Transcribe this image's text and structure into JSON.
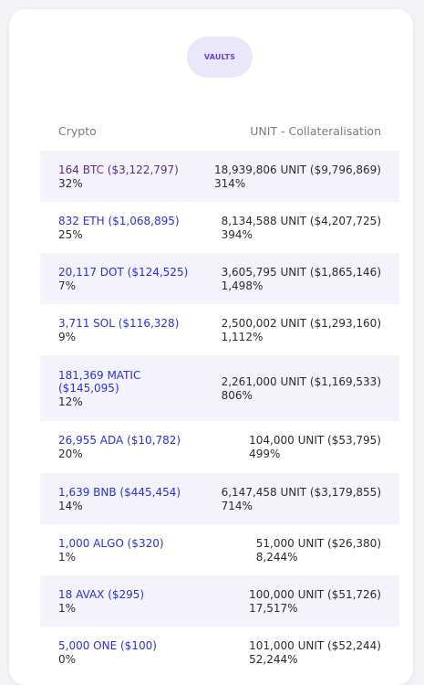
{
  "vault_pill": "VAULTS",
  "table": {
    "headers": [
      "Crypto",
      "UNIT - Collateralisation"
    ],
    "rows": [
      {
        "crypto": "164 BTC ($3,122,797)",
        "crypto_pct": "32%",
        "unit": "18,939,806 UNIT ($9,796,869)",
        "unit_pct": "314%"
      },
      {
        "crypto": "832 ETH ($1,068,895)",
        "crypto_pct": "25%",
        "unit": "8,134,588 UNIT ($4,207,725)",
        "unit_pct": "394%"
      },
      {
        "crypto": "20,117 DOT ($124,525)",
        "crypto_pct": "7%",
        "unit": "3,605,795 UNIT ($1,865,146)",
        "unit_pct": "1,498%"
      },
      {
        "crypto": "3,711 SOL ($116,328)",
        "crypto_pct": "9%",
        "unit": "2,500,002 UNIT ($1,293,160)",
        "unit_pct": "1,112%"
      },
      {
        "crypto": "181,369 MATIC ($145,095)",
        "crypto_pct": "12%",
        "unit": "2,261,000 UNIT ($1,169,533)",
        "unit_pct": "806%"
      },
      {
        "crypto": "26,955 ADA ($10,782)",
        "crypto_pct": "20%",
        "unit": "104,000 UNIT ($53,795)",
        "unit_pct": "499%"
      },
      {
        "crypto": "1,639 BNB ($445,454)",
        "crypto_pct": "14%",
        "unit": "6,147,458 UNIT ($3,179,855)",
        "unit_pct": "714%"
      },
      {
        "crypto": "1,000 ALGO ($320)",
        "crypto_pct": "1%",
        "unit": "51,000 UNIT ($26,380)",
        "unit_pct": "8,244%"
      },
      {
        "crypto": "18 AVAX ($295)",
        "crypto_pct": "1%",
        "unit": "100,000 UNIT ($51,726)",
        "unit_pct": "17,517%"
      },
      {
        "crypto": "5,000 ONE ($100)",
        "crypto_pct": "0%",
        "unit": "101,000 UNIT ($52,244)",
        "unit_pct": "52,244%"
      }
    ]
  }
}
